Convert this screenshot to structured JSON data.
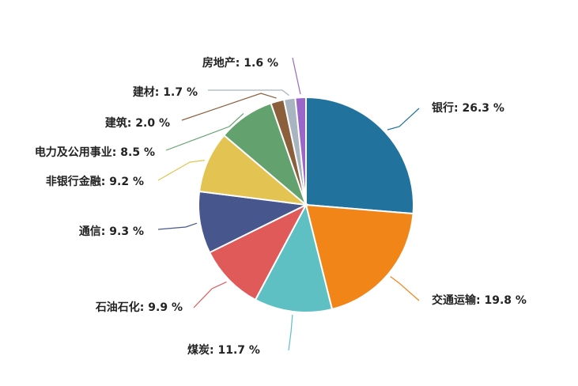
{
  "chart_data": {
    "type": "pie",
    "title": "",
    "slices": [
      {
        "label": "银行",
        "value": 26.3,
        "display": "银行: 26.3 %",
        "color": "#21739e"
      },
      {
        "label": "交通运输",
        "value": 19.8,
        "display": "交通运输: 19.8 %",
        "color": "#f28518"
      },
      {
        "label": "煤炭",
        "value": 11.7,
        "display": "煤炭: 11.7 %",
        "color": "#5ec0c2"
      },
      {
        "label": "石油石化",
        "value": 9.9,
        "display": "石油石化: 9.9 %",
        "color": "#e05a5a"
      },
      {
        "label": "通信",
        "value": 9.3,
        "display": "通信: 9.3 %",
        "color": "#48568e"
      },
      {
        "label": "非银行金融",
        "value": 9.2,
        "display": "非银行金融: 9.2 %",
        "color": "#e3c452"
      },
      {
        "label": "电力及公用事业",
        "value": 8.5,
        "display": "电力及公用事业: 8.5 %",
        "color": "#63a26f"
      },
      {
        "label": "建筑",
        "value": 2.0,
        "display": "建筑: 2.0 %",
        "color": "#8b5e3c"
      },
      {
        "label": "建材",
        "value": 1.7,
        "display": "建材: 1.7 %",
        "color": "#a8b4c0"
      },
      {
        "label": "房地产",
        "value": 1.6,
        "display": "房地产: 1.6 %",
        "color": "#9a67c8"
      }
    ]
  }
}
